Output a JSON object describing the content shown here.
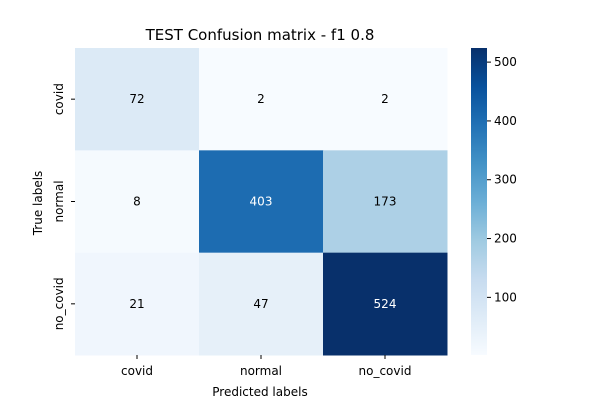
{
  "chart_data": {
    "type": "heatmap",
    "title": "TEST Confusion matrix - f1 0.8",
    "xlabel": "Predicted labels",
    "ylabel": "True labels",
    "x_categories": [
      "covid",
      "normal",
      "no_covid"
    ],
    "y_categories": [
      "covid",
      "normal",
      "no_covid"
    ],
    "values": [
      [
        72,
        2,
        2
      ],
      [
        8,
        403,
        173
      ],
      [
        21,
        47,
        524
      ]
    ],
    "colormap": "Blues",
    "color_range": [
      2,
      524
    ],
    "colorbar_ticks": [
      100,
      200,
      300,
      400,
      500
    ]
  }
}
